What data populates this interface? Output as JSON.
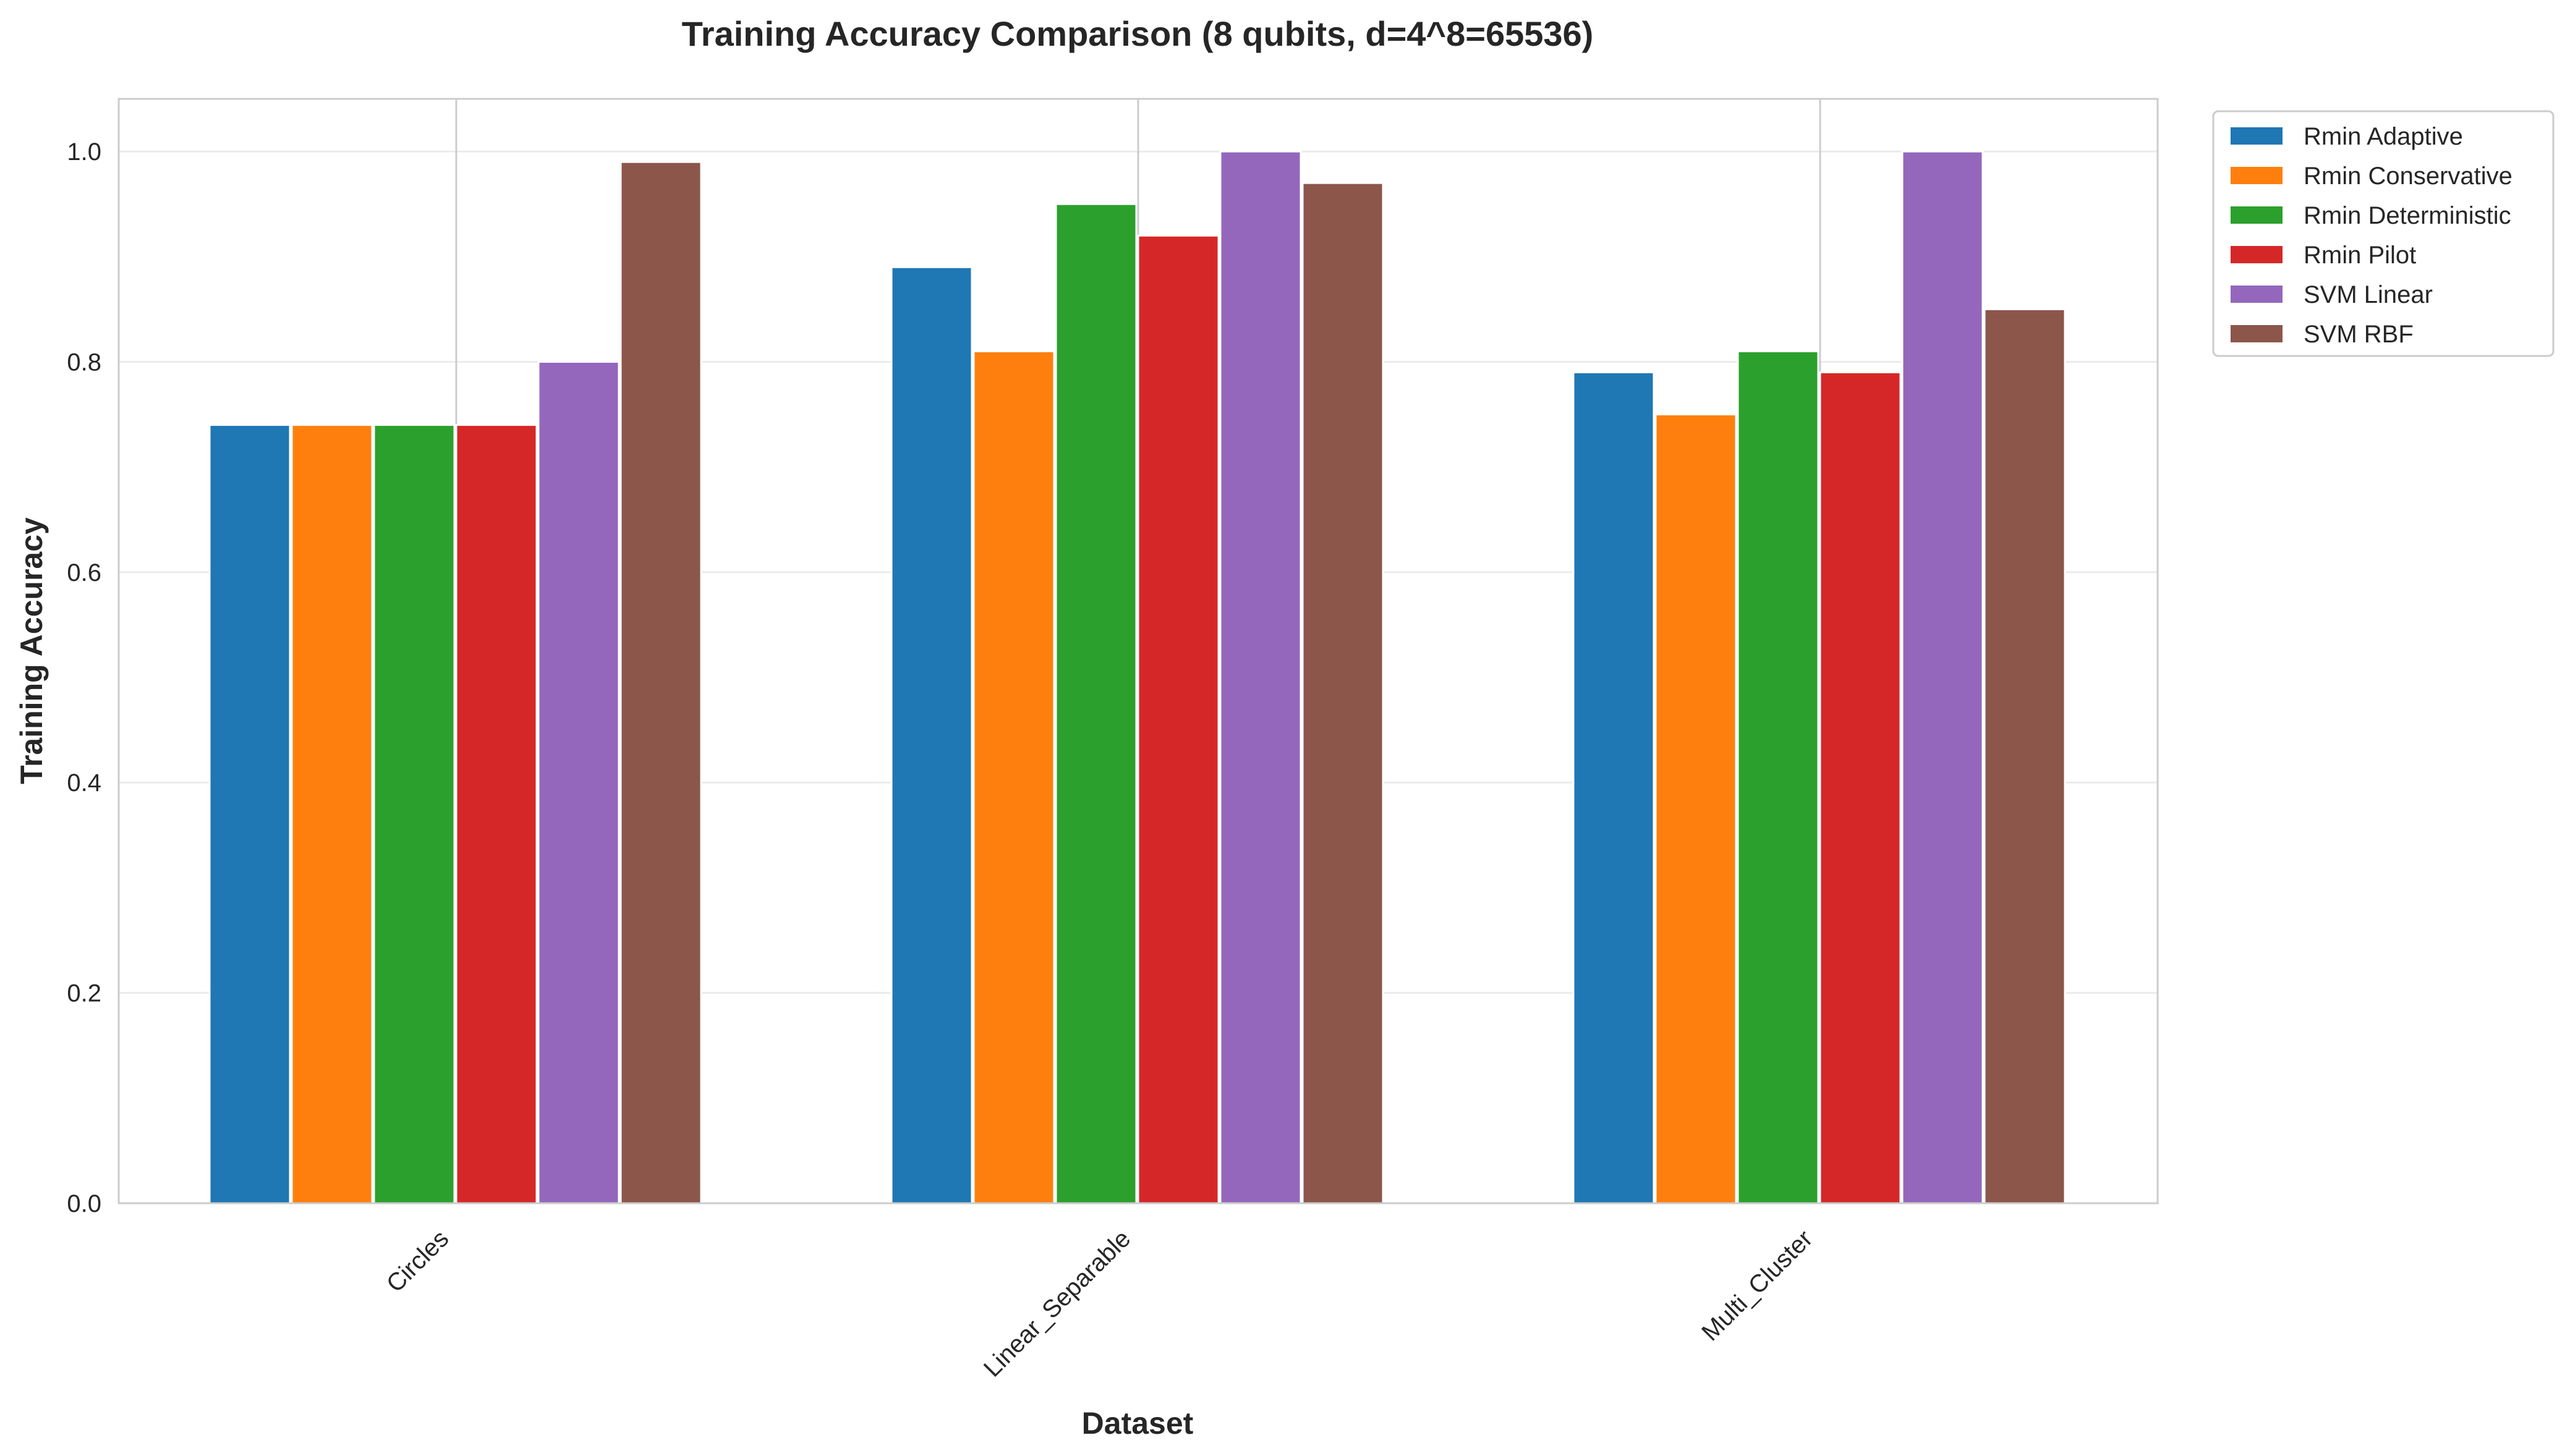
{
  "chart_data": {
    "type": "bar",
    "title": "Training Accuracy Comparison (8 qubits, d=4^8=65536)",
    "xlabel": "Dataset",
    "ylabel": "Training Accuracy",
    "categories": [
      "Circles",
      "Linear_Separable",
      "Multi_Cluster"
    ],
    "ylim": [
      0,
      1.05
    ],
    "yticks": [
      "0.0",
      "0.2",
      "0.4",
      "0.6",
      "0.8",
      "1.0"
    ],
    "grid": true,
    "legend_position": "outside-top-right",
    "series": [
      {
        "name": "Rmin Adaptive",
        "color": "#1f77b4",
        "values": [
          0.74,
          0.89,
          0.79
        ]
      },
      {
        "name": "Rmin Conservative",
        "color": "#ff7f0e",
        "values": [
          0.74,
          0.81,
          0.75
        ]
      },
      {
        "name": "Rmin Deterministic",
        "color": "#2ca02c",
        "values": [
          0.74,
          0.95,
          0.81
        ]
      },
      {
        "name": "Rmin Pilot",
        "color": "#d62728",
        "values": [
          0.74,
          0.92,
          0.79
        ]
      },
      {
        "name": "SVM Linear",
        "color": "#9467bd",
        "values": [
          0.8,
          1.0,
          1.0
        ]
      },
      {
        "name": "SVM RBF",
        "color": "#8c564b",
        "values": [
          0.99,
          0.97,
          0.85
        ]
      }
    ]
  }
}
